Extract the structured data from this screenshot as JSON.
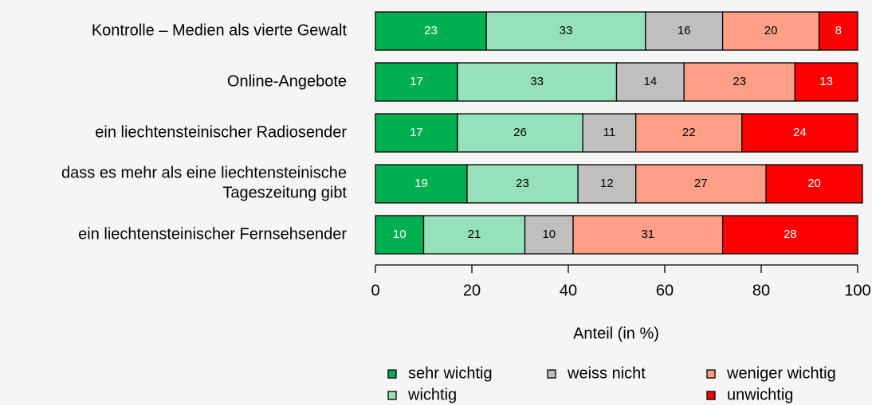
{
  "chart_data": {
    "type": "stacked_bar_horizontal",
    "categories": [
      "Kontrolle – Medien als vierte Gewalt",
      "Online-Angebote",
      "ein liechtensteinischer Radiosender",
      "dass es mehr als eine liechtensteinische\nTageszeitung gibt",
      "ein liechtensteinischer Fernsehsender"
    ],
    "series": [
      {
        "name": "sehr wichtig",
        "color": "#00b050",
        "label_color": "#ffffff",
        "values": [
          23,
          17,
          17,
          19,
          10
        ]
      },
      {
        "name": "wichtig",
        "color": "#96e0bb",
        "label_color": "#000000",
        "values": [
          33,
          33,
          26,
          23,
          21
        ]
      },
      {
        "name": "weiss nicht",
        "color": "#bfbfbf",
        "label_color": "#000000",
        "values": [
          16,
          14,
          11,
          12,
          10
        ]
      },
      {
        "name": "weniger wichtig",
        "color": "#fc9f86",
        "label_color": "#000000",
        "values": [
          20,
          23,
          22,
          27,
          31
        ]
      },
      {
        "name": "unwichtig",
        "color": "#ff0000",
        "label_color": "#ffffff",
        "values": [
          8,
          13,
          24,
          20,
          28
        ]
      }
    ],
    "xlabel": "Anteil (in %)",
    "xlim": [
      0,
      100
    ],
    "xticks": [
      0,
      20,
      40,
      60,
      80,
      100
    ]
  }
}
